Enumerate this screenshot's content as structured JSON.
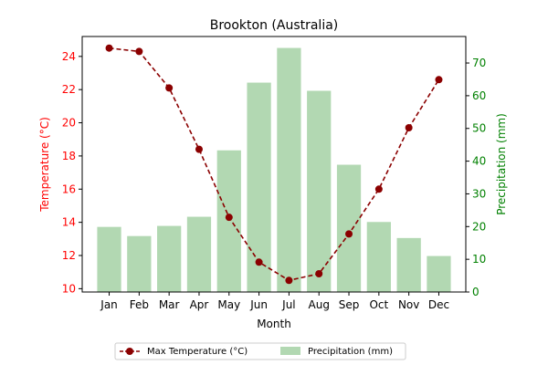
{
  "chart_data": {
    "type": "bar+line",
    "title": "Brookton (Australia)",
    "xlabel": "Month",
    "ylabel_left": "Temperature (°C)",
    "ylabel_right": "Precipitation (mm)",
    "categories": [
      "Jan",
      "Feb",
      "Mar",
      "Apr",
      "May",
      "Jun",
      "Jul",
      "Aug",
      "Sep",
      "Oct",
      "Nov",
      "Dec"
    ],
    "ylim_left": [
      9.8,
      25.2
    ],
    "ylim_right": [
      0,
      78.1
    ],
    "yticks_left": [
      10,
      12,
      14,
      16,
      18,
      20,
      22,
      24
    ],
    "yticks_right": [
      0,
      10,
      20,
      30,
      40,
      50,
      60,
      70
    ],
    "grid": false,
    "legend_position": "bottom-center",
    "series": [
      {
        "name": "Max Temperature (°C)",
        "kind": "line",
        "axis": "left",
        "color": "#8b0000",
        "values": [
          24.5,
          24.3,
          22.1,
          18.4,
          14.3,
          11.6,
          10.5,
          10.9,
          13.3,
          16.0,
          19.7,
          22.6
        ]
      },
      {
        "name": "Precipitation (mm)",
        "kind": "bar",
        "axis": "right",
        "color": "#b2d8b2",
        "values": [
          19.9,
          17.1,
          20.2,
          23.0,
          43.3,
          64.0,
          74.6,
          61.5,
          38.9,
          21.4,
          16.5,
          11.0
        ]
      }
    ],
    "colors": {
      "left_axis": "#ff0000",
      "right_axis": "#008000"
    }
  }
}
